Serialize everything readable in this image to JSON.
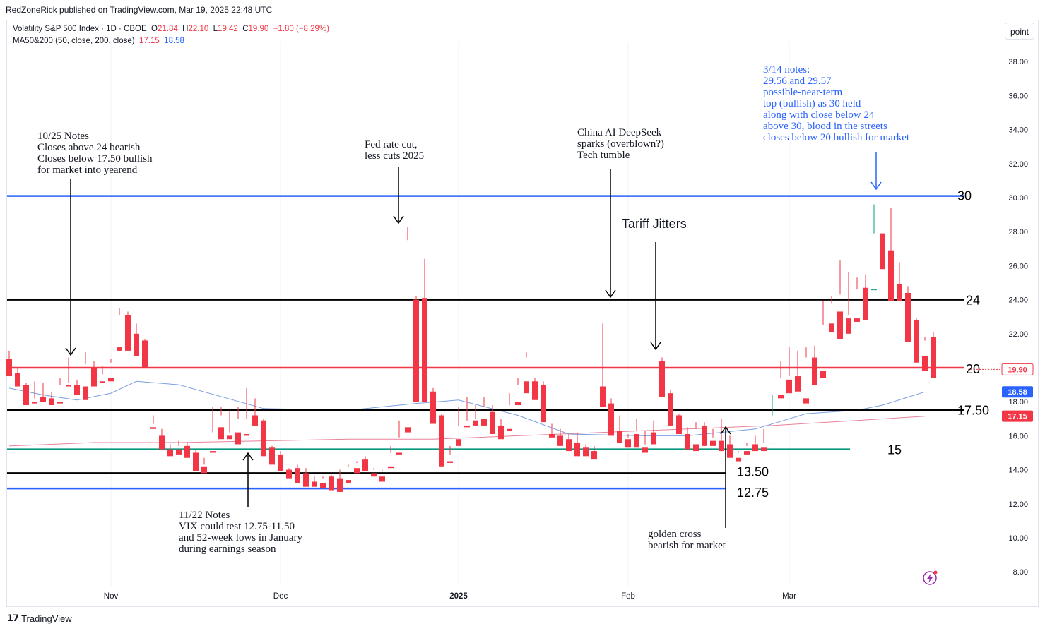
{
  "header": {
    "publisher": "RedZoneRick published on TradingView.com, Mar 19, 2025 22:48 UTC",
    "symbol": "Volatility S&P 500 Index · 1D · CBOE",
    "ohlc": {
      "O": "21.84",
      "H": "22.10",
      "L": "19.42",
      "C": "19.90",
      "change": "−1.80 (−8.29%)"
    },
    "ma_label": "MA50&200 (50, close, 200, close)",
    "ma50_value": "17.15",
    "ma200_value": "18.58",
    "unit_button": "point"
  },
  "footer": {
    "brand": "TradingView"
  },
  "colors": {
    "up": "#089981",
    "down": "#f23645",
    "ma50": "#e8829a",
    "ma200": "#7a9fe0",
    "blue_line": "#2962ff",
    "green_line": "#089981",
    "red_line": "#f23645",
    "black_line": "#000000"
  },
  "chart_data": {
    "type": "candlestick",
    "y_axis": {
      "min": 8,
      "max": 38,
      "ticks": [
        "38.00",
        "36.00",
        "34.00",
        "32.00",
        "30.00",
        "28.00",
        "26.00",
        "24.00",
        "22.00",
        "20.00",
        "18.00",
        "16.00",
        "14.00",
        "12.00",
        "10.00",
        "8.00"
      ]
    },
    "x_axis": {
      "ticks": [
        {
          "label": "Nov",
          "index": 12
        },
        {
          "label": "Dec",
          "index": 32
        },
        {
          "label": "2025",
          "index": 53
        },
        {
          "label": "Feb",
          "index": 73
        },
        {
          "label": "Mar",
          "index": 92
        }
      ]
    },
    "candles": [
      [
        20.5,
        21.0,
        19.7,
        19.5
      ],
      [
        19.7,
        20.0,
        19.0,
        18.9
      ],
      [
        19.0,
        19.1,
        17.9,
        17.8
      ],
      [
        18.0,
        19.2,
        18.2,
        17.9
      ],
      [
        18.3,
        19.1,
        18.3,
        18.0
      ],
      [
        18.2,
        18.6,
        18.0,
        17.8
      ],
      [
        18.0,
        19.4,
        19.0,
        17.9
      ],
      [
        19.0,
        20.6,
        19.1,
        18.9
      ],
      [
        19.0,
        19.3,
        18.9,
        18.4
      ],
      [
        18.9,
        20.9,
        20.2,
        18.1
      ],
      [
        20.0,
        20.4,
        19.2,
        18.9
      ],
      [
        19.2,
        20.1,
        19.6,
        19.1
      ],
      [
        19.4,
        20.5,
        20.3,
        19.2
      ],
      [
        21.2,
        23.5,
        23.1,
        21.0
      ],
      [
        23.1,
        23.3,
        22.1,
        21.0
      ],
      [
        22.0,
        22.6,
        21.5,
        20.7
      ],
      [
        21.6,
        21.7,
        20.2,
        20.0
      ],
      [
        16.5,
        17.2,
        16.7,
        16.4
      ],
      [
        16.0,
        16.4,
        15.4,
        15.2
      ],
      [
        15.2,
        15.5,
        15.0,
        14.8
      ],
      [
        15.2,
        15.7,
        15.4,
        14.9
      ],
      [
        15.4,
        15.6,
        14.8,
        14.7
      ],
      [
        15.0,
        15.2,
        14.0,
        13.9
      ],
      [
        14.2,
        14.7,
        14.3,
        13.8
      ],
      [
        15.1,
        17.7,
        16.2,
        15.0
      ],
      [
        16.5,
        17.7,
        17.2,
        15.8
      ],
      [
        16.0,
        17.5,
        16.2,
        15.8
      ],
      [
        16.2,
        17.7,
        17.0,
        15.5
      ],
      [
        16.1,
        18.8,
        17.0,
        16.0
      ],
      [
        17.2,
        18.2,
        16.8,
        16.6
      ],
      [
        16.9,
        17.0,
        15.1,
        14.8
      ],
      [
        15.3,
        15.4,
        14.8,
        14.3
      ],
      [
        14.9,
        15.1,
        14.1,
        13.9
      ],
      [
        14.0,
        14.1,
        13.8,
        13.5
      ],
      [
        14.1,
        14.3,
        13.4,
        13.2
      ],
      [
        13.8,
        14.1,
        13.3,
        13.0
      ],
      [
        13.3,
        13.6,
        13.2,
        13.0
      ],
      [
        13.2,
        13.6,
        13.5,
        12.9
      ],
      [
        13.6,
        13.7,
        13.3,
        12.8
      ],
      [
        13.5,
        14.0,
        13.4,
        12.7
      ],
      [
        13.4,
        14.2,
        14.3,
        13.2
      ],
      [
        14.1,
        14.5,
        14.4,
        13.8
      ],
      [
        14.6,
        14.8,
        14.4,
        13.9
      ],
      [
        13.8,
        14.1,
        14.0,
        13.6
      ],
      [
        13.6,
        14.0,
        13.9,
        13.3
      ],
      [
        14.2,
        15.4,
        15.0,
        14.1
      ],
      [
        15.0,
        16.9,
        15.9,
        14.9
      ],
      [
        16.5,
        28.3,
        27.5,
        16.2
      ],
      [
        24.0,
        24.2,
        21.0,
        18.0
      ],
      [
        24.1,
        26.4,
        18.5,
        18.0
      ],
      [
        18.6,
        18.8,
        17.0,
        16.7
      ],
      [
        17.2,
        17.3,
        14.5,
        14.2
      ],
      [
        14.5,
        15.4,
        14.9,
        14.4
      ],
      [
        15.8,
        17.7,
        16.6,
        15.4
      ],
      [
        16.6,
        18.3,
        16.9,
        16.5
      ],
      [
        16.9,
        17.8,
        17.0,
        16.6
      ],
      [
        17.0,
        18.3,
        17.7,
        16.6
      ],
      [
        17.4,
        17.8,
        16.2,
        16.1
      ],
      [
        16.6,
        17.0,
        16.0,
        15.8
      ],
      [
        16.4,
        18.5,
        17.8,
        16.3
      ],
      [
        18.0,
        19.4,
        19.0,
        17.8
      ],
      [
        19.2,
        20.9,
        20.6,
        18.5
      ],
      [
        19.2,
        19.4,
        19.0,
        18.1
      ],
      [
        19.0,
        19.2,
        17.1,
        16.8
      ],
      [
        16.1,
        16.7,
        15.9,
        15.9
      ],
      [
        16.0,
        16.4,
        15.7,
        15.4
      ],
      [
        15.8,
        16.1,
        15.3,
        15.1
      ],
      [
        15.6,
        16.2,
        15.3,
        14.8
      ],
      [
        15.3,
        15.5,
        15.0,
        14.8
      ],
      [
        15.1,
        15.4,
        14.9,
        14.6
      ],
      [
        18.9,
        22.6,
        17.9,
        17.7
      ],
      [
        17.9,
        18.2,
        16.2,
        16.0
      ],
      [
        16.3,
        17.2,
        16.3,
        15.6
      ],
      [
        15.8,
        16.1,
        15.9,
        15.3
      ],
      [
        16.1,
        17.0,
        16.3,
        15.3
      ],
      [
        15.3,
        16.3,
        15.5,
        15.0
      ],
      [
        16.2,
        16.9,
        16.2,
        15.5
      ],
      [
        20.4,
        20.6,
        18.5,
        18.3
      ],
      [
        18.5,
        18.7,
        17.3,
        16.6
      ],
      [
        17.2,
        17.3,
        16.3,
        16.1
      ],
      [
        16.1,
        16.5,
        15.5,
        15.2
      ],
      [
        15.5,
        16.8,
        16.4,
        15.1
      ],
      [
        16.6,
        16.8,
        15.8,
        15.4
      ],
      [
        15.7,
        16.4,
        15.9,
        15.4
      ],
      [
        15.7,
        17.0,
        15.6,
        15.1
      ],
      [
        15.5,
        16.0,
        14.8,
        14.7
      ],
      [
        14.7,
        15.1,
        15.0,
        14.5
      ],
      [
        15.1,
        15.6,
        15.4,
        14.9
      ],
      [
        15.5,
        16.0,
        15.3,
        15.1
      ],
      [
        15.3,
        16.4,
        15.6,
        15.1
      ],
      [
        15.6,
        17.2,
        18.4,
        15.6
      ],
      [
        18.4,
        20.4,
        19.4,
        18.2
      ],
      [
        19.3,
        21.2,
        19.5,
        18.5
      ],
      [
        19.5,
        21.0,
        18.9,
        18.6
      ],
      [
        18.2,
        21.2,
        20.6,
        17.9
      ],
      [
        20.6,
        21.3,
        19.7,
        19.0
      ],
      [
        19.8,
        23.9,
        22.5,
        19.4
      ],
      [
        22.6,
        24.2,
        23.8,
        22.1
      ],
      [
        23.3,
        26.3,
        24.3,
        21.7
      ],
      [
        22.9,
        25.6,
        23.1,
        22.0
      ],
      [
        22.9,
        25.3,
        24.6,
        22.7
      ],
      [
        24.7,
        25.5,
        23.3,
        22.8
      ],
      [
        24.6,
        29.6,
        27.9,
        24.6
      ],
      [
        27.9,
        27.4,
        26.8,
        25.8
      ],
      [
        26.9,
        29.4,
        24.3,
        23.9
      ],
      [
        24.9,
        26.2,
        24.7,
        23.9
      ],
      [
        24.4,
        24.8,
        21.8,
        21.5
      ],
      [
        22.8,
        22.9,
        20.5,
        20.3
      ],
      [
        20.7,
        21.8,
        21.6,
        19.8
      ],
      [
        21.8,
        22.1,
        19.9,
        19.4
      ]
    ],
    "ma50": [
      [
        0,
        15.4
      ],
      [
        10,
        15.6
      ],
      [
        20,
        15.6
      ],
      [
        30,
        15.7
      ],
      [
        40,
        15.8
      ],
      [
        50,
        15.8
      ],
      [
        60,
        16.0
      ],
      [
        70,
        16.2
      ],
      [
        80,
        16.4
      ],
      [
        90,
        16.6
      ],
      [
        100,
        16.9
      ],
      [
        108,
        17.15
      ]
    ],
    "ma200": [
      [
        0,
        18.8
      ],
      [
        4,
        18.4
      ],
      [
        8,
        18.1
      ],
      [
        12,
        18.5
      ],
      [
        15,
        19.2
      ],
      [
        20,
        19.0
      ],
      [
        30,
        17.6
      ],
      [
        40,
        17.5
      ],
      [
        48,
        17.9
      ],
      [
        53,
        18.1
      ],
      [
        60,
        17.2
      ],
      [
        66,
        16.1
      ],
      [
        75,
        16.0
      ],
      [
        80,
        16.0
      ],
      [
        88,
        16.4
      ],
      [
        94,
        17.3
      ],
      [
        100,
        17.5
      ],
      [
        103,
        17.8
      ],
      [
        108,
        18.58
      ]
    ],
    "levels": [
      {
        "name": "level-30",
        "value": 30.1,
        "label": "30",
        "color": "#2962ff",
        "x_end": "full"
      },
      {
        "name": "level-24",
        "value": 24.0,
        "label": "24",
        "color": "#000000",
        "x_end": "full"
      },
      {
        "name": "level-20",
        "value": 20.0,
        "label": "20",
        "color": "#f23645",
        "x_end": "full"
      },
      {
        "name": "level-17-50",
        "value": 17.5,
        "label": "17.50",
        "color": "#000000",
        "x_end": "full"
      },
      {
        "name": "level-15",
        "value": 15.2,
        "label": "15",
        "color": "#089981",
        "x_end": "partial"
      },
      {
        "name": "level-13-50",
        "value": 13.8,
        "label": "13.50",
        "color": "#000000",
        "x_end": "partial"
      },
      {
        "name": "level-12-75",
        "value": 12.9,
        "label": "12.75",
        "color": "#2962ff",
        "x_end": "partial"
      }
    ],
    "price_badges": [
      {
        "value": 19.9,
        "label": "19.90",
        "bg": "#ffffff",
        "fg": "#f23645",
        "border": "#f23645"
      },
      {
        "value": 18.58,
        "label": "18.58",
        "bg": "#2962ff",
        "fg": "#ffffff"
      },
      {
        "value": 17.15,
        "label": "17.15",
        "bg": "#f23645",
        "fg": "#ffffff"
      }
    ],
    "annotations": [
      {
        "name": "note-1025",
        "lines": [
          "10/25 Notes",
          "Closes above 24 bearish",
          "Closes below 17.50 bullish",
          "for market into yearend"
        ],
        "color": "#131722"
      },
      {
        "name": "note-fed",
        "lines": [
          "Fed rate cut,",
          "less cuts 2025"
        ],
        "color": "#131722"
      },
      {
        "name": "note-deepseek",
        "lines": [
          "China AI DeepSeek",
          "sparks (overblown?)",
          "Tech tumble"
        ],
        "color": "#131722"
      },
      {
        "name": "note-tariff",
        "lines": [
          "Tariff Jitters"
        ],
        "color": "#131722"
      },
      {
        "name": "note-314",
        "lines": [
          "3/14 notes:",
          "29.56 and 29.57",
          "possible-near-term",
          "top (bullish) as 30 held",
          "along with close below 24",
          "above 30, blood in the streets",
          "closes below 20 bullish for market"
        ],
        "color": "#2962ff"
      },
      {
        "name": "note-1122",
        "lines": [
          "11/22 Notes",
          "VIX could test 12.75-11.50",
          "and 52-week lows in January",
          "during earnings season"
        ],
        "color": "#131722"
      },
      {
        "name": "note-golden-cross",
        "lines": [
          "golden cross",
          "bearish for market"
        ],
        "color": "#131722"
      }
    ]
  }
}
